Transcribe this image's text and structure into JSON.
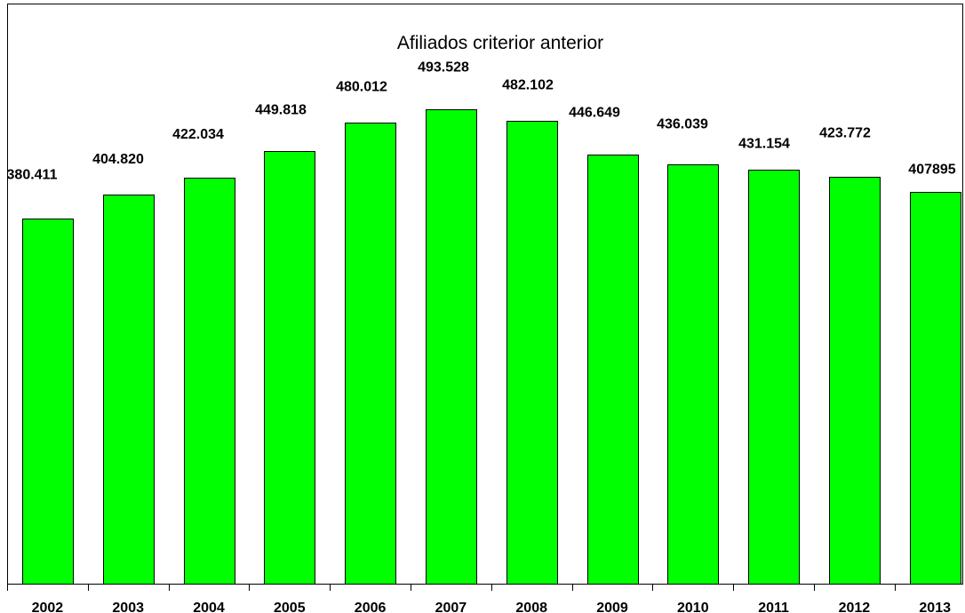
{
  "chart_data": {
    "type": "bar",
    "title": "Afiliados criterior anterior",
    "xlabel": "",
    "ylabel": "",
    "categories": [
      "2002",
      "2003",
      "2004",
      "2005",
      "2006",
      "2007",
      "2008",
      "2009",
      "2010",
      "2011",
      "2012",
      "2013"
    ],
    "values": [
      380411,
      404820,
      422034,
      449818,
      480012,
      493528,
      482102,
      446649,
      436039,
      431154,
      423772,
      407895
    ],
    "data_labels": [
      "380.411",
      "404.820",
      "422.034",
      "449.818",
      "480.012",
      "493.528",
      "482.102",
      "446.649",
      "436.039",
      "431.154",
      "423.772",
      "407895"
    ],
    "ylim": [
      0,
      600000
    ],
    "grid": false,
    "legend": false,
    "colors": {
      "bar_fill": "#00FF00",
      "bar_outline": "#000000"
    }
  }
}
